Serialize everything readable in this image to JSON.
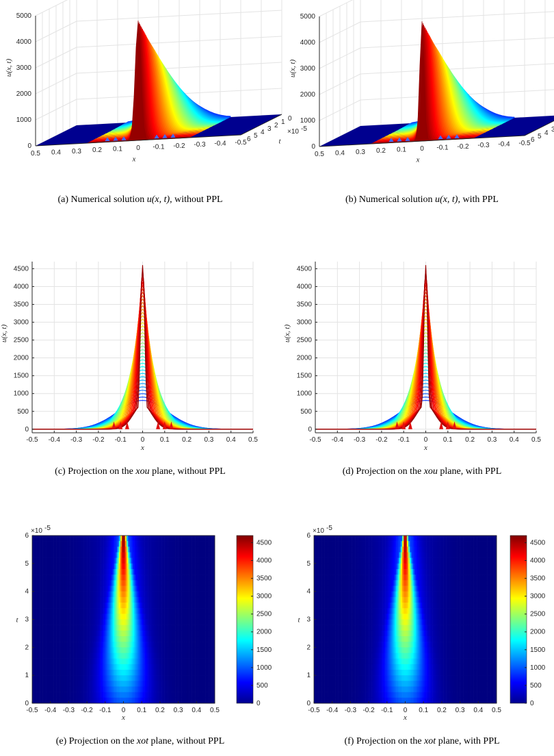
{
  "captions": [
    {
      "label": "(a)",
      "pre": "Numerical solution",
      "math": "u(x, t)",
      "post": ", without PPL"
    },
    {
      "label": "(b)",
      "pre": "Numerical solution",
      "math": "u(x, t)",
      "post": ", with PPL"
    },
    {
      "label": "(c)",
      "pre": "Projection on the",
      "math": "xou",
      "post": " plane, without PPL"
    },
    {
      "label": "(d)",
      "pre": "Projection on the",
      "math": "xou",
      "post": " plane, with PPL"
    },
    {
      "label": "(e)",
      "pre": "Projection on the",
      "math": "xot",
      "post": " plane, without PPL"
    },
    {
      "label": "(f)",
      "pre": "Projection on the",
      "math": "xot",
      "post": " plane, with PPL"
    }
  ],
  "colors": {
    "colormap": "jet",
    "grid": "#e3e3e3",
    "axis": "#262626",
    "floor": "#00008f"
  },
  "chart_data": [
    {
      "id": "a",
      "type": "surface",
      "ppl": false,
      "zlabel": "u(x, t)",
      "xlabel": "x",
      "ylabel": "t",
      "z_ticks": [
        "0",
        "1000",
        "2000",
        "3000",
        "4000",
        "5000"
      ],
      "x_ticks": [
        "0.5",
        "0.4",
        "0.3",
        "0.2",
        "0.1",
        "0",
        "-0.1",
        "-0.2",
        "-0.3",
        "-0.4",
        "-0.5"
      ],
      "t_ticks": [
        "6",
        "5",
        "4",
        "3",
        "2",
        "1",
        "0"
      ],
      "t_exponent": "×10",
      "t_exponent_power": "-5",
      "xlim": [
        -0.5,
        0.5
      ],
      "tlim": [
        0,
        6e-05
      ],
      "zlim": [
        0,
        5000
      ],
      "peak_u": 4600,
      "shoulder_u": 850,
      "peak_width": 0.02
    },
    {
      "id": "b",
      "type": "surface",
      "ppl": true,
      "zlabel": "u(x, t)",
      "xlabel": "x",
      "ylabel": "t",
      "z_ticks": [
        "0",
        "1000",
        "2000",
        "3000",
        "4000",
        "5000"
      ],
      "x_ticks": [
        "0.5",
        "0.4",
        "0.3",
        "0.2",
        "0.1",
        "0",
        "-0.1",
        "-0.2",
        "-0.3",
        "-0.4",
        "-0.5"
      ],
      "t_ticks": [
        "6",
        "5",
        "4",
        "3",
        "2",
        "1",
        "0"
      ],
      "t_exponent": "×10",
      "t_exponent_power": "-5",
      "xlim": [
        -0.5,
        0.5
      ],
      "tlim": [
        0,
        6e-05
      ],
      "zlim": [
        0,
        5000
      ],
      "peak_u": 4600,
      "shoulder_u": 850,
      "peak_width": 0.015
    },
    {
      "id": "c",
      "type": "line",
      "ppl": false,
      "ylabel": "u(x, t)",
      "xlabel": "x",
      "x_ticks": [
        "-0.5",
        "-0.4",
        "-0.3",
        "-0.2",
        "-0.1",
        "0",
        "0.1",
        "0.2",
        "0.3",
        "0.4",
        "0.5"
      ],
      "y_ticks": [
        "0",
        "500",
        "1000",
        "1500",
        "2000",
        "2500",
        "3000",
        "3500",
        "4000",
        "4500"
      ],
      "xlim": [
        -0.5,
        0.5
      ],
      "ylim": [
        -100,
        4700
      ],
      "peak_u": 4600,
      "shoulder_u": 850,
      "spread_x": 0.25
    },
    {
      "id": "d",
      "type": "line",
      "ppl": true,
      "ylabel": "u(x, t)",
      "xlabel": "x",
      "x_ticks": [
        "-0.5",
        "-0.4",
        "-0.3",
        "-0.2",
        "-0.1",
        "0",
        "0.1",
        "0.2",
        "0.3",
        "0.4",
        "0.5"
      ],
      "y_ticks": [
        "0",
        "500",
        "1000",
        "1500",
        "2000",
        "2500",
        "3000",
        "3500",
        "4000",
        "4500"
      ],
      "xlim": [
        -0.5,
        0.5
      ],
      "ylim": [
        -100,
        4700
      ],
      "peak_u": 4600,
      "shoulder_u": 850,
      "spread_x": 0.28
    },
    {
      "id": "e",
      "type": "heatmap",
      "ppl": false,
      "ylabel": "t",
      "xlabel": "x",
      "x_ticks": [
        "-0.5",
        "-0.4",
        "-0.3",
        "-0.2",
        "-0.1",
        "0",
        "0.1",
        "0.2",
        "0.3",
        "0.4",
        "0.5"
      ],
      "y_ticks": [
        "0",
        "1",
        "2",
        "3",
        "4",
        "5",
        "6"
      ],
      "y_exponent": "×10",
      "y_exponent_power": "-5",
      "colorbar_ticks": [
        "0",
        "500",
        "1000",
        "1500",
        "2000",
        "2500",
        "3000",
        "3500",
        "4000",
        "4500"
      ],
      "xlim": [
        -0.5,
        0.5
      ],
      "ylim": [
        0,
        6e-05
      ],
      "clim": [
        0,
        4700
      ]
    },
    {
      "id": "f",
      "type": "heatmap",
      "ppl": true,
      "ylabel": "t",
      "xlabel": "x",
      "x_ticks": [
        "-0.5",
        "-0.4",
        "-0.3",
        "-0.2",
        "-0.1",
        "0",
        "0.1",
        "0.2",
        "0.3",
        "0.4",
        "0.5"
      ],
      "y_ticks": [
        "0",
        "1",
        "2",
        "3",
        "4",
        "5",
        "6"
      ],
      "y_exponent": "×10",
      "y_exponent_power": "-5",
      "colorbar_ticks": [
        "0",
        "500",
        "1000",
        "1500",
        "2000",
        "2500",
        "3000",
        "3500",
        "4000",
        "4500"
      ],
      "xlim": [
        -0.5,
        0.5
      ],
      "ylim": [
        0,
        6e-05
      ],
      "clim": [
        0,
        4700
      ]
    }
  ]
}
